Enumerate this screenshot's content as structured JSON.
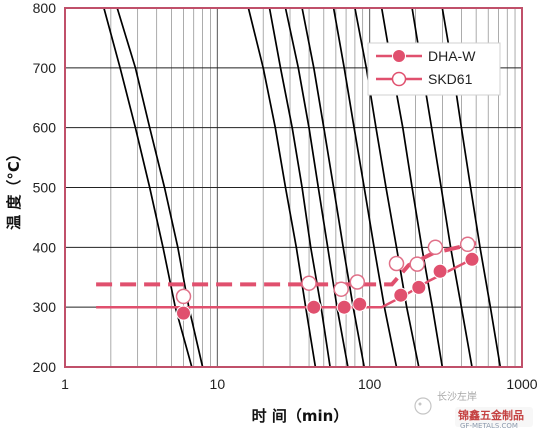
{
  "chart_data": {
    "type": "scatter",
    "xlabel": "时 间（min）",
    "ylabel": "温 度（°C）",
    "x_scale": "log",
    "xlim": [
      1,
      1000
    ],
    "ylim": [
      200,
      800
    ],
    "x_ticks": [
      "1",
      "10",
      "100",
      "1000"
    ],
    "y_ticks": [
      "200",
      "300",
      "400",
      "500",
      "600",
      "700",
      "800"
    ],
    "grid": true,
    "legend_position": "top-right",
    "series": [
      {
        "name": "DHA-W",
        "marker": "filled-circle",
        "color": "#e0506e",
        "line_style": "solid",
        "points": [
          {
            "x": 6,
            "y": 290
          },
          {
            "x": 43,
            "y": 300
          },
          {
            "x": 68,
            "y": 300
          },
          {
            "x": 86,
            "y": 305
          },
          {
            "x": 160,
            "y": 320
          },
          {
            "x": 210,
            "y": 333
          },
          {
            "x": 290,
            "y": 360
          },
          {
            "x": 470,
            "y": 380
          }
        ],
        "trend": [
          [
            1.6,
            300
          ],
          [
            120,
            300
          ],
          [
            170,
            320
          ],
          [
            250,
            345
          ],
          [
            470,
            380
          ]
        ]
      },
      {
        "name": "SKD61",
        "marker": "open-circle",
        "color": "#e0506e",
        "line_style": "dashed",
        "points": [
          {
            "x": 6,
            "y": 318
          },
          {
            "x": 40,
            "y": 340
          },
          {
            "x": 65,
            "y": 330
          },
          {
            "x": 83,
            "y": 342
          },
          {
            "x": 150,
            "y": 373
          },
          {
            "x": 205,
            "y": 372
          },
          {
            "x": 270,
            "y": 400
          },
          {
            "x": 440,
            "y": 405
          }
        ],
        "trend": [
          [
            1.6,
            338
          ],
          [
            140,
            338
          ],
          [
            180,
            370
          ],
          [
            260,
            390
          ],
          [
            500,
            407
          ]
        ]
      }
    ],
    "curves": [
      [
        [
          1.8,
          800
        ],
        [
          2.3,
          700
        ],
        [
          2.9,
          600
        ],
        [
          3.6,
          500
        ],
        [
          4.4,
          400
        ],
        [
          5.3,
          300
        ],
        [
          6.8,
          200
        ]
      ],
      [
        [
          2.2,
          800
        ],
        [
          2.9,
          700
        ],
        [
          3.6,
          600
        ],
        [
          4.5,
          500
        ],
        [
          5.5,
          400
        ],
        [
          6.5,
          300
        ],
        [
          8,
          200
        ]
      ],
      [
        [
          16,
          800
        ],
        [
          20,
          700
        ],
        [
          24,
          600
        ],
        [
          28,
          500
        ],
        [
          33,
          400
        ],
        [
          38,
          300
        ],
        [
          44,
          200
        ]
      ],
      [
        [
          22,
          800
        ],
        [
          26,
          700
        ],
        [
          31,
          600
        ],
        [
          36,
          500
        ],
        [
          41,
          400
        ],
        [
          48,
          300
        ],
        [
          55,
          200
        ]
      ],
      [
        [
          28,
          800
        ],
        [
          34,
          700
        ],
        [
          40,
          600
        ],
        [
          46,
          500
        ],
        [
          53,
          400
        ],
        [
          61,
          300
        ],
        [
          72,
          200
        ]
      ],
      [
        [
          36,
          800
        ],
        [
          43,
          700
        ],
        [
          50,
          600
        ],
        [
          58,
          500
        ],
        [
          67,
          400
        ],
        [
          78,
          300
        ],
        [
          92,
          200
        ]
      ],
      [
        [
          58,
          800
        ],
        [
          68,
          700
        ],
        [
          79,
          600
        ],
        [
          92,
          500
        ],
        [
          107,
          400
        ],
        [
          125,
          300
        ],
        [
          150,
          200
        ]
      ],
      [
        [
          80,
          800
        ],
        [
          95,
          700
        ],
        [
          110,
          600
        ],
        [
          128,
          500
        ],
        [
          150,
          400
        ],
        [
          175,
          300
        ],
        [
          210,
          200
        ]
      ],
      [
        [
          120,
          800
        ],
        [
          140,
          700
        ],
        [
          165,
          600
        ],
        [
          190,
          500
        ],
        [
          220,
          400
        ],
        [
          258,
          300
        ],
        [
          300,
          200
        ]
      ],
      [
        [
          190,
          800
        ],
        [
          220,
          700
        ],
        [
          255,
          600
        ],
        [
          295,
          500
        ],
        [
          340,
          400
        ],
        [
          400,
          300
        ],
        [
          470,
          200
        ]
      ],
      [
        [
          300,
          800
        ],
        [
          350,
          700
        ],
        [
          400,
          600
        ],
        [
          460,
          500
        ],
        [
          530,
          400
        ],
        [
          620,
          300
        ],
        [
          720,
          200
        ]
      ]
    ]
  },
  "watermark": {
    "line1": "长沙左岸",
    "line2": "锦鑫五金制品",
    "line3": "GF-METALS.COM"
  }
}
